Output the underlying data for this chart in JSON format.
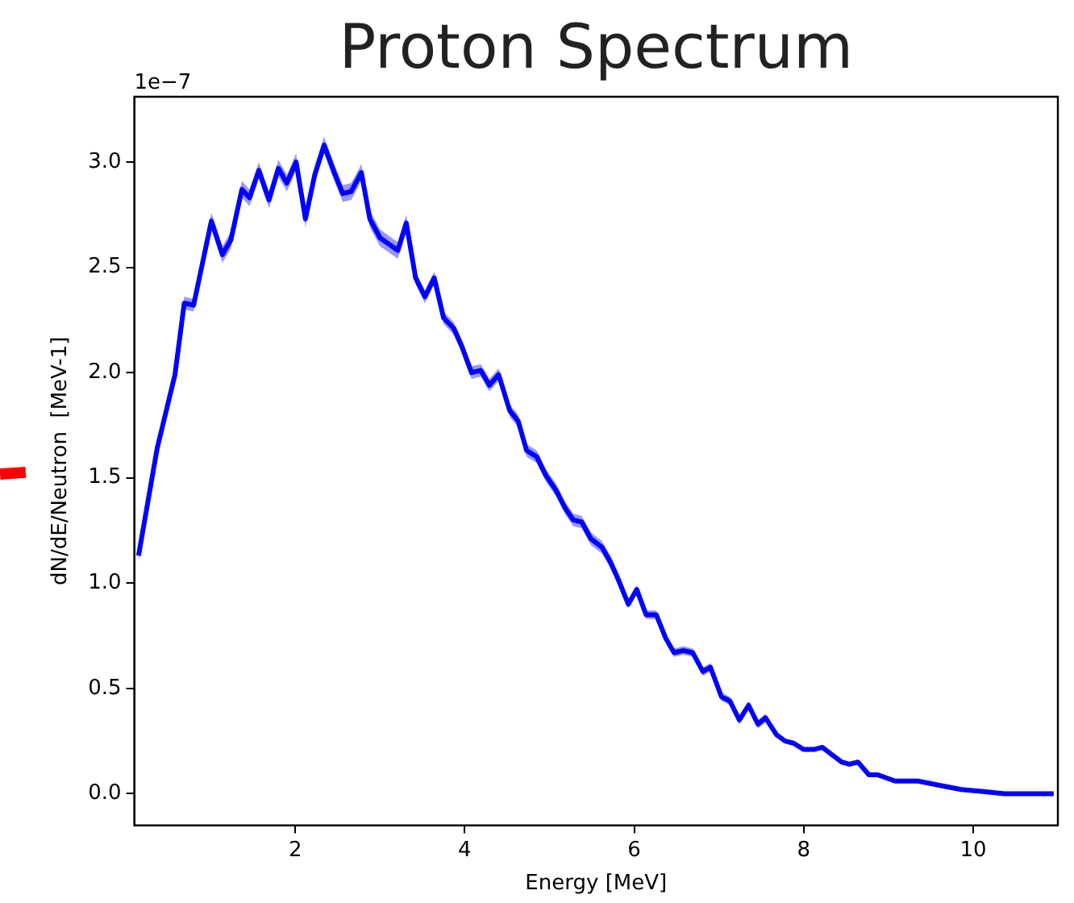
{
  "chart_data": {
    "type": "line",
    "title": "Proton Spectrum",
    "xlabel": "Energy [MeV]",
    "ylabel": "dN/dE/Neutron  [MeV-1]",
    "annotations": [
      "1e−7"
    ],
    "marker": "none",
    "legend": false,
    "xlim": [
      0.1,
      11.0
    ],
    "xticks": [
      2,
      4,
      6,
      8,
      10
    ],
    "ylim": [
      -0.15,
      3.31
    ],
    "yticks": [
      {
        "value": 0,
        "label": "0.0"
      },
      0.5,
      {
        "value": 1,
        "label": "1.0"
      },
      1.5,
      {
        "value": 2,
        "label": "2.0"
      },
      2.5,
      {
        "value": 3,
        "label": "3.0"
      }
    ],
    "series": [
      {
        "color": "#0000ff",
        "x": [
          0.15,
          0.37,
          0.58,
          0.69,
          0.8,
          1.01,
          1.14,
          1.24,
          1.37,
          1.46,
          1.57,
          1.69,
          1.8,
          1.9,
          2.01,
          2.12,
          2.23,
          2.34,
          2.46,
          2.56,
          2.66,
          2.78,
          2.88,
          3.0,
          3.21,
          3.31,
          3.42,
          3.53,
          3.64,
          3.75,
          3.87,
          3.96,
          4.08,
          4.19,
          4.29,
          4.4,
          4.53,
          4.63,
          4.73,
          4.85,
          4.96,
          5.08,
          5.18,
          5.28,
          5.38,
          5.49,
          5.62,
          5.72,
          5.82,
          5.93,
          6.03,
          6.14,
          6.26,
          6.37,
          6.47,
          6.58,
          6.69,
          6.81,
          6.9,
          7.03,
          7.13,
          7.24,
          7.35,
          7.46,
          7.55,
          7.68,
          7.78,
          7.88,
          8.0,
          8.12,
          8.22,
          8.35,
          8.45,
          8.54,
          8.64,
          8.77,
          8.87,
          9.08,
          9.35,
          9.6,
          9.86,
          10.12,
          10.37,
          10.95
        ],
        "values": [
          1.13,
          1.64,
          1.99,
          2.33,
          2.32,
          2.72,
          2.56,
          2.63,
          2.87,
          2.83,
          2.96,
          2.82,
          2.97,
          2.9,
          3.0,
          2.73,
          2.94,
          3.08,
          2.95,
          2.85,
          2.86,
          2.95,
          2.73,
          2.64,
          2.58,
          2.71,
          2.45,
          2.36,
          2.45,
          2.26,
          2.21,
          2.13,
          2.0,
          2.01,
          1.94,
          1.99,
          1.82,
          1.77,
          1.63,
          1.6,
          1.51,
          1.44,
          1.36,
          1.3,
          1.29,
          1.21,
          1.17,
          1.1,
          1.01,
          0.9,
          0.97,
          0.85,
          0.85,
          0.74,
          0.67,
          0.68,
          0.67,
          0.58,
          0.6,
          0.46,
          0.44,
          0.35,
          0.42,
          0.33,
          0.36,
          0.28,
          0.25,
          0.24,
          0.21,
          0.21,
          0.22,
          0.18,
          0.15,
          0.14,
          0.15,
          0.09,
          0.09,
          0.06,
          0.06,
          0.04,
          0.02,
          0.01,
          0.0,
          0.0
        ],
        "lower": [
          1.1,
          1.61,
          1.96,
          2.3,
          2.29,
          2.68,
          2.52,
          2.59,
          2.83,
          2.79,
          2.92,
          2.78,
          2.93,
          2.86,
          2.96,
          2.69,
          2.9,
          3.04,
          2.91,
          2.81,
          2.82,
          2.91,
          2.69,
          2.6,
          2.54,
          2.67,
          2.42,
          2.33,
          2.42,
          2.23,
          2.18,
          2.1,
          1.97,
          1.98,
          1.91,
          1.96,
          1.79,
          1.74,
          1.6,
          1.57,
          1.48,
          1.41,
          1.33,
          1.27,
          1.26,
          1.18,
          1.14,
          1.07,
          0.98,
          0.88,
          0.95,
          0.83,
          0.83,
          0.72,
          0.65,
          0.66,
          0.65,
          0.56,
          0.58,
          0.44,
          0.42,
          0.33,
          0.4,
          0.31,
          0.34,
          0.27,
          0.24,
          0.23,
          0.2,
          0.2,
          0.21,
          0.17,
          0.14,
          0.13,
          0.14,
          0.08,
          0.08,
          0.05,
          0.05,
          0.03,
          0.01,
          0.0,
          -0.01,
          -0.01
        ],
        "upper": [
          1.16,
          1.67,
          2.02,
          2.36,
          2.35,
          2.76,
          2.6,
          2.67,
          2.91,
          2.87,
          3.0,
          2.86,
          3.01,
          2.94,
          3.04,
          2.77,
          2.98,
          3.12,
          2.99,
          2.89,
          2.9,
          2.99,
          2.77,
          2.68,
          2.62,
          2.75,
          2.48,
          2.39,
          2.48,
          2.29,
          2.24,
          2.16,
          2.03,
          2.04,
          1.97,
          2.02,
          1.85,
          1.8,
          1.66,
          1.63,
          1.54,
          1.47,
          1.39,
          1.33,
          1.32,
          1.24,
          1.2,
          1.13,
          1.04,
          0.92,
          0.99,
          0.87,
          0.87,
          0.76,
          0.69,
          0.7,
          0.69,
          0.6,
          0.62,
          0.48,
          0.46,
          0.37,
          0.44,
          0.35,
          0.38,
          0.29,
          0.26,
          0.25,
          0.22,
          0.22,
          0.23,
          0.19,
          0.16,
          0.15,
          0.16,
          0.1,
          0.1,
          0.07,
          0.07,
          0.05,
          0.03,
          0.02,
          0.01,
          0.01
        ]
      }
    ]
  }
}
